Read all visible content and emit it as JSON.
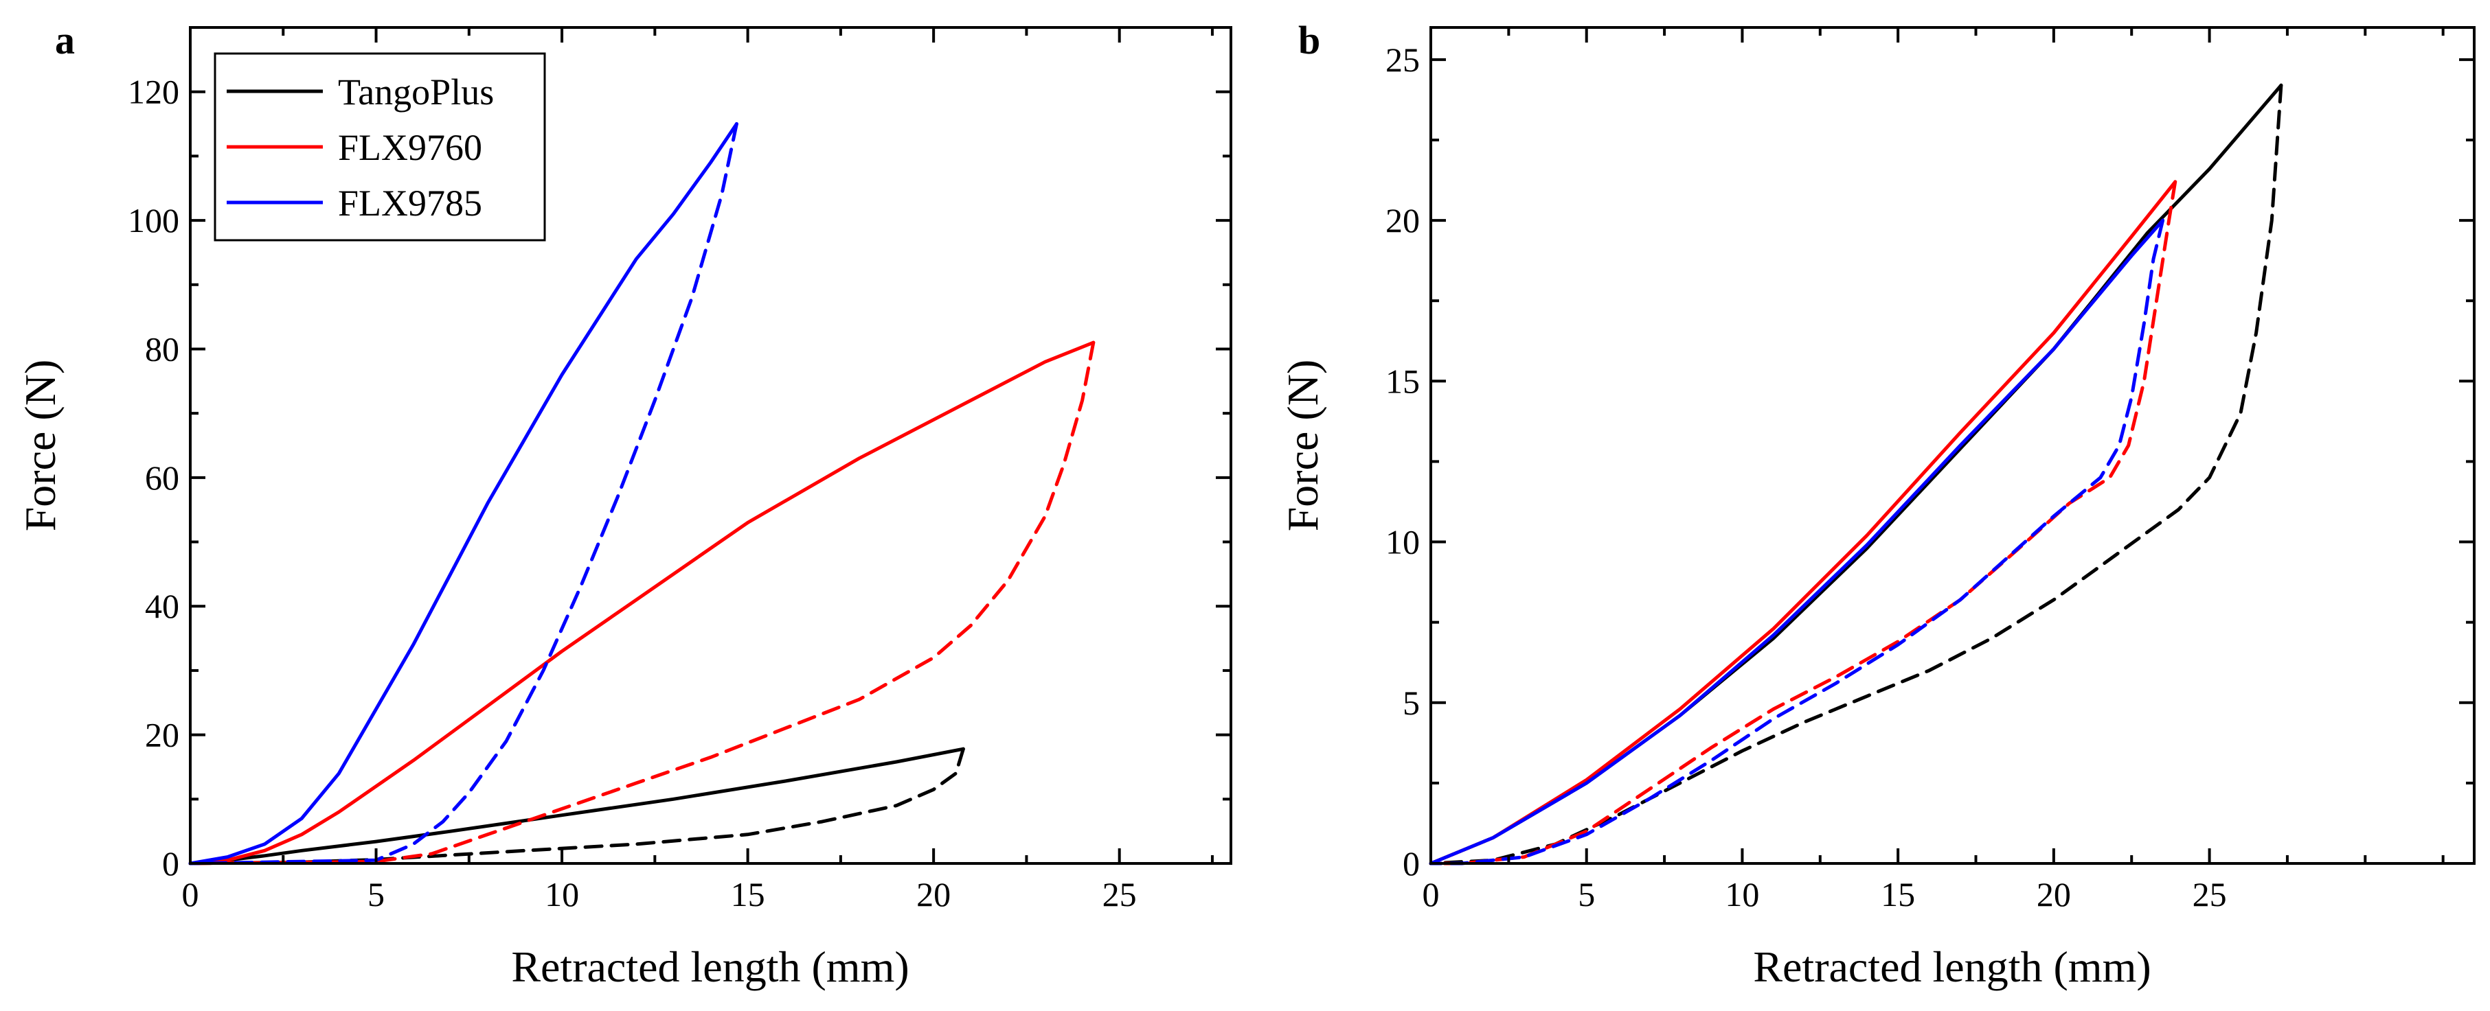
{
  "figure": {
    "background": "#ffffff"
  },
  "chart_data": [
    {
      "type": "line",
      "panel_label": "a",
      "xlabel": "Retracted length (mm)",
      "ylabel": "Force (N)",
      "xlim": [
        0,
        28
      ],
      "ylim": [
        0,
        130
      ],
      "xticks": [
        0,
        5,
        10,
        15,
        20,
        25
      ],
      "xminor": [
        2.5,
        7.5,
        12.5,
        17.5,
        22.5,
        27.5
      ],
      "yticks": [
        0,
        20,
        40,
        60,
        80,
        100,
        120
      ],
      "yminor": [
        10,
        30,
        50,
        70,
        90,
        110
      ],
      "legend": {
        "position": "top-left",
        "entries": [
          {
            "label": "TangoPlus",
            "color": "#000000"
          },
          {
            "label": "FLX9760",
            "color": "#ff0000"
          },
          {
            "label": "FLX9785",
            "color": "#0000ff"
          }
        ]
      },
      "series": [
        {
          "name": "TangoPlus loading",
          "color": "#000000",
          "style": "solid",
          "x": [
            0,
            1,
            2,
            3,
            5,
            7,
            10,
            13,
            16,
            19,
            20.8
          ],
          "y": [
            0,
            0.5,
            1.2,
            2,
            3.4,
            5,
            7.5,
            10,
            12.8,
            15.8,
            17.8
          ]
        },
        {
          "name": "TangoPlus unloading",
          "color": "#000000",
          "style": "dashed",
          "x": [
            20.8,
            20.6,
            20,
            19,
            17,
            15,
            12,
            9,
            7,
            5,
            3,
            0
          ],
          "y": [
            17.8,
            14,
            11.5,
            9,
            6.5,
            4.5,
            3,
            2,
            1.3,
            0.6,
            0.2,
            0
          ]
        },
        {
          "name": "FLX9760 loading",
          "color": "#ff0000",
          "style": "solid",
          "x": [
            0,
            1,
            2,
            3,
            4,
            5,
            6,
            8,
            10,
            12,
            15,
            18,
            21,
            23,
            24.3
          ],
          "y": [
            0,
            0.5,
            2,
            4.5,
            8,
            12,
            16,
            24.5,
            33,
            41,
            53,
            63,
            72,
            78,
            81
          ]
        },
        {
          "name": "FLX9760 unloading",
          "color": "#ff0000",
          "style": "dashed",
          "x": [
            24.3,
            24,
            23.5,
            23,
            22,
            21,
            20,
            18,
            16,
            14,
            12,
            10,
            8,
            6.5,
            5,
            0
          ],
          "y": [
            81,
            72,
            62,
            54,
            44,
            37,
            32,
            25.5,
            21,
            16.5,
            12.5,
            8.5,
            4.5,
            1.5,
            0.3,
            0
          ]
        },
        {
          "name": "FLX9785 loading",
          "color": "#0000ff",
          "style": "solid",
          "x": [
            0,
            1,
            2,
            3,
            4,
            5,
            6,
            7,
            8,
            9,
            10,
            11,
            12,
            13,
            14,
            14.7
          ],
          "y": [
            0,
            1,
            3,
            7,
            14,
            24,
            34,
            45,
            56,
            66,
            76,
            85,
            94,
            101,
            109,
            115
          ]
        },
        {
          "name": "FLX9785 unloading",
          "color": "#0000ff",
          "style": "dashed",
          "x": [
            14.7,
            14.3,
            13.5,
            12.5,
            11.5,
            10.5,
            9.5,
            8.5,
            7.5,
            6.8,
            6,
            5,
            0
          ],
          "y": [
            115,
            104,
            88,
            72,
            57,
            43,
            30,
            19,
            11,
            6.5,
            3,
            0.5,
            0
          ]
        }
      ]
    },
    {
      "type": "line",
      "panel_label": "b",
      "xlabel": "Retracted length (mm)",
      "ylabel": "Force (N)",
      "xlim": [
        0,
        33.5
      ],
      "ylim": [
        0,
        26
      ],
      "xticks": [
        0,
        5,
        10,
        15,
        20,
        25
      ],
      "xminor": [
        2.5,
        7.5,
        12.5,
        17.5,
        22.5,
        27.5,
        30,
        32.5
      ],
      "yticks": [
        0,
        5,
        10,
        15,
        20,
        25
      ],
      "yminor": [
        2.5,
        7.5,
        12.5,
        17.5,
        22.5
      ],
      "series": [
        {
          "name": "TangoPlus loading",
          "color": "#000000",
          "style": "solid",
          "x": [
            0,
            2,
            5,
            8,
            11,
            14,
            17,
            20,
            23,
            25,
            27.3
          ],
          "y": [
            0,
            0.8,
            2.5,
            4.6,
            7,
            9.8,
            12.9,
            16,
            19.6,
            21.6,
            24.2
          ]
        },
        {
          "name": "TangoPlus unloading",
          "color": "#000000",
          "style": "dashed",
          "x": [
            27.3,
            27,
            26.5,
            26,
            25,
            24,
            22,
            20,
            18,
            16,
            14,
            12,
            10,
            8,
            6,
            4,
            2,
            0
          ],
          "y": [
            24.2,
            20,
            16.5,
            14,
            12,
            11,
            9.6,
            8.2,
            7,
            6,
            5.2,
            4.4,
            3.5,
            2.5,
            1.5,
            0.6,
            0.1,
            0
          ]
        },
        {
          "name": "FLX9760 loading",
          "color": "#ff0000",
          "style": "solid",
          "x": [
            0,
            2,
            5,
            8,
            11,
            14,
            17,
            20,
            22.5,
            23.9
          ],
          "y": [
            0,
            0.8,
            2.6,
            4.8,
            7.3,
            10.2,
            13.4,
            16.5,
            19.5,
            21.2
          ]
        },
        {
          "name": "FLX9760 unloading",
          "color": "#ff0000",
          "style": "dashed",
          "x": [
            23.9,
            23.7,
            23.3,
            22.9,
            22.4,
            21.8,
            20.5,
            19,
            17,
            15,
            13,
            11,
            9,
            7,
            5,
            3,
            1,
            0
          ],
          "y": [
            21.2,
            20,
            17.5,
            15,
            13,
            12,
            11.2,
            9.9,
            8.2,
            6.9,
            5.8,
            4.8,
            3.6,
            2.3,
            1,
            0.2,
            0,
            0
          ]
        },
        {
          "name": "FLX9785 loading",
          "color": "#0000ff",
          "style": "solid",
          "x": [
            0,
            2,
            5,
            8,
            11,
            14,
            17,
            20,
            22.5,
            23.5
          ],
          "y": [
            0,
            0.8,
            2.5,
            4.6,
            7.1,
            9.9,
            13,
            16,
            18.9,
            20
          ]
        },
        {
          "name": "FLX9785 unloading",
          "color": "#0000ff",
          "style": "dashed",
          "x": [
            23.5,
            23.2,
            22.9,
            22.5,
            22.1,
            21.5,
            20,
            18.5,
            17,
            15,
            13,
            11,
            9,
            7,
            5,
            3,
            1,
            0
          ],
          "y": [
            20,
            18.8,
            16.8,
            14.5,
            13,
            12,
            10.8,
            9.5,
            8.2,
            6.8,
            5.6,
            4.5,
            3.2,
            2,
            0.9,
            0.2,
            0,
            0
          ]
        }
      ]
    }
  ]
}
